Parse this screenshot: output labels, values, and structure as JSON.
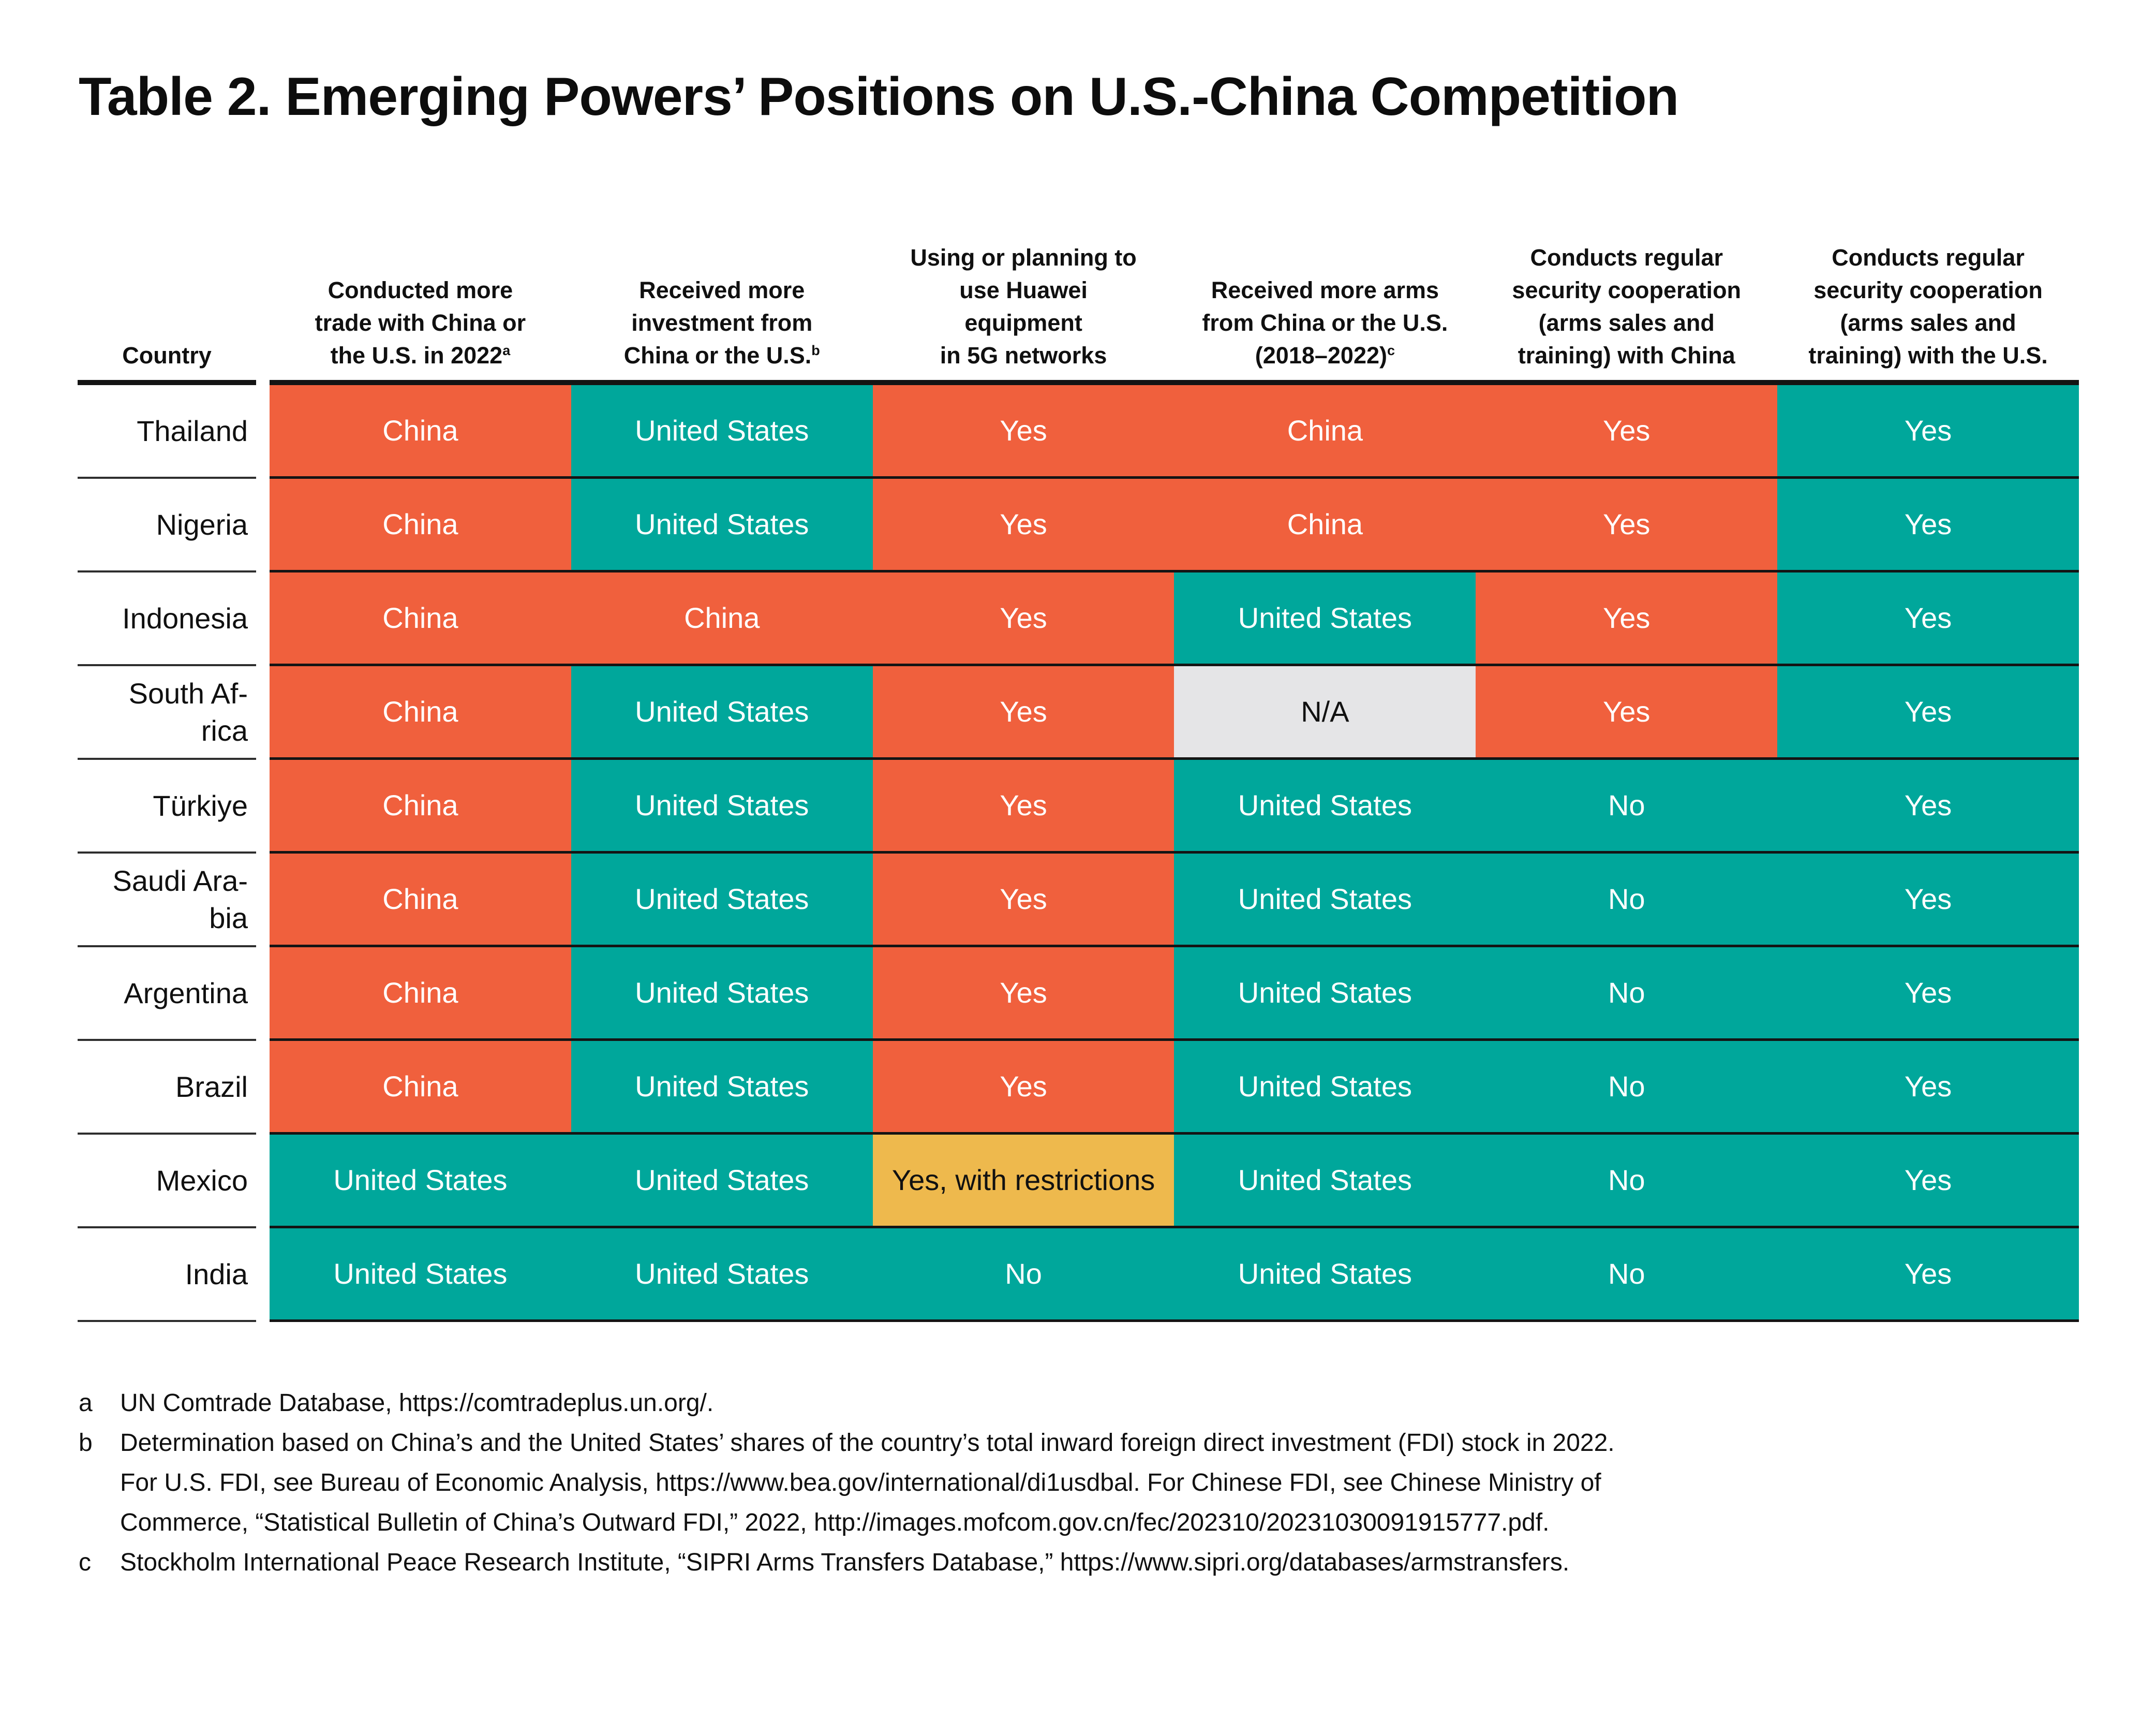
{
  "page": {
    "title": "Table 2. Emerging Powers’ Positions on U.S.-China Competition"
  },
  "colors": {
    "china": "#F0603D",
    "us": "#00A79B",
    "na": "#E5E5E7",
    "restricted": "#EEB94D",
    "text_on_color": "#FFFFFF",
    "text_on_light": "#111111",
    "rule": "#141414"
  },
  "table": {
    "columns": [
      {
        "id": "country",
        "lines": [
          "Country"
        ],
        "sup": ""
      },
      {
        "id": "trade",
        "lines": [
          "Conducted more",
          "trade with China or",
          "the U.S. in 2022"
        ],
        "sup": "a"
      },
      {
        "id": "investment",
        "lines": [
          "Received more",
          "investment from",
          "China or the U.S."
        ],
        "sup": "b"
      },
      {
        "id": "huawei",
        "lines": [
          "Using or planning to",
          "use Huawei",
          "equipment",
          "in 5G networks"
        ],
        "sup": ""
      },
      {
        "id": "arms",
        "lines": [
          "Received more arms",
          "from China or the U.S.",
          "(2018–2022)"
        ],
        "sup": "c"
      },
      {
        "id": "security-china",
        "lines": [
          "Conducts regular",
          "security cooperation",
          "(arms sales  and",
          "training) with China"
        ],
        "sup": ""
      },
      {
        "id": "security-us",
        "lines": [
          "Conducts regular",
          "security cooperation",
          "(arms sales and",
          "training) with the U.S."
        ],
        "sup": ""
      }
    ],
    "rows": [
      {
        "id": "thailand",
        "country_lines": [
          "Thailand"
        ],
        "cells": [
          {
            "text": "China",
            "tone": "china"
          },
          {
            "text": "United States",
            "tone": "us"
          },
          {
            "text": "Yes",
            "tone": "china"
          },
          {
            "text": "China",
            "tone": "china"
          },
          {
            "text": "Yes",
            "tone": "china"
          },
          {
            "text": "Yes",
            "tone": "us"
          }
        ]
      },
      {
        "id": "nigeria",
        "country_lines": [
          "Nigeria"
        ],
        "cells": [
          {
            "text": "China",
            "tone": "china"
          },
          {
            "text": "United States",
            "tone": "us"
          },
          {
            "text": "Yes",
            "tone": "china"
          },
          {
            "text": "China",
            "tone": "china"
          },
          {
            "text": "Yes",
            "tone": "china"
          },
          {
            "text": "Yes",
            "tone": "us"
          }
        ]
      },
      {
        "id": "indonesia",
        "country_lines": [
          "Indonesia"
        ],
        "cells": [
          {
            "text": "China",
            "tone": "china"
          },
          {
            "text": "China",
            "tone": "china"
          },
          {
            "text": "Yes",
            "tone": "china"
          },
          {
            "text": "United States",
            "tone": "us"
          },
          {
            "text": "Yes",
            "tone": "china"
          },
          {
            "text": "Yes",
            "tone": "us"
          }
        ]
      },
      {
        "id": "south-africa",
        "country_lines": [
          "South Af-",
          "rica"
        ],
        "cells": [
          {
            "text": "China",
            "tone": "china"
          },
          {
            "text": "United States",
            "tone": "us"
          },
          {
            "text": "Yes",
            "tone": "china"
          },
          {
            "text": "N/A",
            "tone": "na"
          },
          {
            "text": "Yes",
            "tone": "china"
          },
          {
            "text": "Yes",
            "tone": "us"
          }
        ]
      },
      {
        "id": "turkiye",
        "country_lines": [
          "Türkiye"
        ],
        "cells": [
          {
            "text": "China",
            "tone": "china"
          },
          {
            "text": "United States",
            "tone": "us"
          },
          {
            "text": "Yes",
            "tone": "china"
          },
          {
            "text": "United States",
            "tone": "us"
          },
          {
            "text": "No",
            "tone": "us"
          },
          {
            "text": "Yes",
            "tone": "us"
          }
        ]
      },
      {
        "id": "saudi-arabia",
        "country_lines": [
          "Saudi Ara-",
          "bia"
        ],
        "cells": [
          {
            "text": "China",
            "tone": "china"
          },
          {
            "text": "United States",
            "tone": "us"
          },
          {
            "text": "Yes",
            "tone": "china"
          },
          {
            "text": "United States",
            "tone": "us"
          },
          {
            "text": "No",
            "tone": "us"
          },
          {
            "text": "Yes",
            "tone": "us"
          }
        ]
      },
      {
        "id": "argentina",
        "country_lines": [
          "Argentina"
        ],
        "cells": [
          {
            "text": "China",
            "tone": "china"
          },
          {
            "text": "United States",
            "tone": "us"
          },
          {
            "text": "Yes",
            "tone": "china"
          },
          {
            "text": "United States",
            "tone": "us"
          },
          {
            "text": "No",
            "tone": "us"
          },
          {
            "text": "Yes",
            "tone": "us"
          }
        ]
      },
      {
        "id": "brazil",
        "country_lines": [
          "Brazil"
        ],
        "cells": [
          {
            "text": "China",
            "tone": "china"
          },
          {
            "text": "United States",
            "tone": "us"
          },
          {
            "text": "Yes",
            "tone": "china"
          },
          {
            "text": "United States",
            "tone": "us"
          },
          {
            "text": "No",
            "tone": "us"
          },
          {
            "text": "Yes",
            "tone": "us"
          }
        ]
      },
      {
        "id": "mexico",
        "country_lines": [
          "Mexico"
        ],
        "cells": [
          {
            "text": "United States",
            "tone": "us"
          },
          {
            "text": "United States",
            "tone": "us"
          },
          {
            "text": "Yes, with restrictions",
            "tone": "restricted"
          },
          {
            "text": "United States",
            "tone": "us"
          },
          {
            "text": "No",
            "tone": "us"
          },
          {
            "text": "Yes",
            "tone": "us"
          }
        ]
      },
      {
        "id": "india",
        "country_lines": [
          "India"
        ],
        "cells": [
          {
            "text": "United States",
            "tone": "us"
          },
          {
            "text": "United States",
            "tone": "us"
          },
          {
            "text": "No",
            "tone": "us"
          },
          {
            "text": "United States",
            "tone": "us"
          },
          {
            "text": "No",
            "tone": "us"
          },
          {
            "text": "Yes",
            "tone": "us"
          }
        ]
      }
    ]
  },
  "footnotes": [
    {
      "marker": "a",
      "lines": [
        "UN Comtrade Database, https://comtradeplus.un.org/."
      ]
    },
    {
      "marker": "b",
      "lines": [
        "Determination based on China’s and the United States’ shares of the country’s total inward foreign direct investment (FDI) stock in 2022.",
        "For U.S. FDI, see Bureau of Economic  Analysis, https://www.bea.gov/international/di1usdbal. For Chinese FDI, see Chinese Ministry of",
        "Commerce, “Statistical Bulletin of China’s Outward FDI,” 2022, http://images.mofcom.gov.cn/fec/202310/20231030091915777.pdf."
      ]
    },
    {
      "marker": "c",
      "lines": [
        "Stockholm International Peace Research Institute, “SIPRI Arms Transfers Database,” https://www.sipri.org/databases/armstransfers."
      ]
    }
  ]
}
